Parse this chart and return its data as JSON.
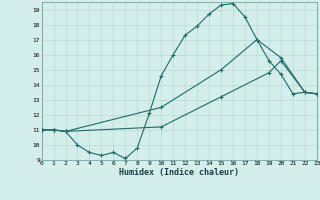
{
  "xlabel": "Humidex (Indice chaleur)",
  "bg_color": "#d4eeec",
  "grid_color": "#b8d8d6",
  "line_color": "#1e6b65",
  "xlim": [
    0,
    23
  ],
  "ylim": [
    9,
    19.5
  ],
  "yticks": [
    9,
    10,
    11,
    12,
    13,
    14,
    15,
    16,
    17,
    18,
    19
  ],
  "xticks": [
    0,
    1,
    2,
    3,
    4,
    5,
    6,
    7,
    8,
    9,
    10,
    11,
    12,
    13,
    14,
    15,
    16,
    17,
    18,
    19,
    20,
    21,
    22,
    23
  ],
  "line1_x": [
    0,
    1,
    2,
    3,
    4,
    5,
    6,
    7,
    8,
    9,
    10,
    11,
    12,
    13,
    14,
    15,
    16,
    17,
    18,
    19,
    20,
    21,
    22,
    23
  ],
  "line1_y": [
    11,
    11,
    10.9,
    10.0,
    9.5,
    9.3,
    9.5,
    9.1,
    9.8,
    12.1,
    14.6,
    16.0,
    17.3,
    17.9,
    18.7,
    19.3,
    19.4,
    18.5,
    17.0,
    15.6,
    14.7,
    13.4,
    13.5,
    13.4
  ],
  "line2_x": [
    0,
    1,
    2,
    10,
    15,
    18,
    20,
    22,
    23
  ],
  "line2_y": [
    11,
    11,
    10.9,
    12.5,
    15.0,
    17.0,
    15.8,
    13.5,
    13.4
  ],
  "line3_x": [
    0,
    1,
    2,
    10,
    15,
    19,
    20,
    22,
    23
  ],
  "line3_y": [
    11,
    11,
    10.9,
    11.2,
    13.2,
    14.8,
    15.6,
    13.5,
    13.4
  ]
}
